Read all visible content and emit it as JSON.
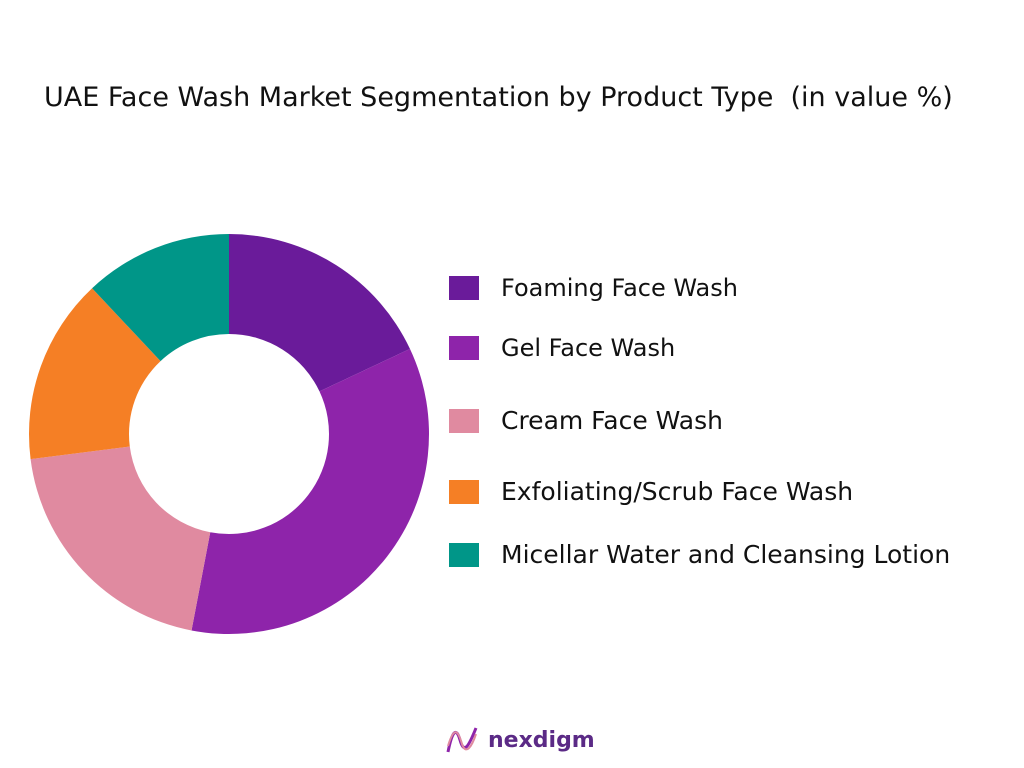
{
  "chart_data": {
    "type": "donut",
    "title": "UAE Face Wash Market Segmentation by Product Type  (in value %)",
    "categories": [
      "Foaming Face Wash",
      "Gel Face Wash",
      "Cream Face Wash",
      "Exfoliating/Scrub Face Wash",
      "Micellar Water and Cleansing Lotion"
    ],
    "values": [
      18,
      35,
      20,
      15,
      12
    ],
    "colors": [
      "#6a1b9a",
      "#8e24aa",
      "#e08aa0",
      "#f57f25",
      "#009688"
    ]
  },
  "logo": "nexdigm"
}
